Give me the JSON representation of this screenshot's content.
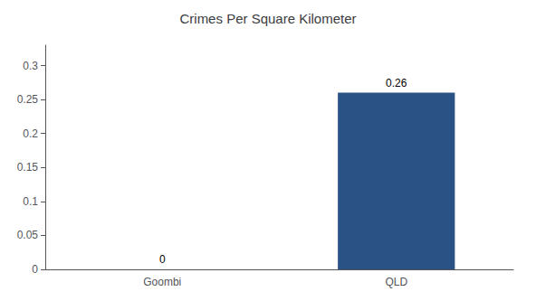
{
  "chart_data": {
    "type": "bar",
    "title": "Crimes Per Square Kilometer",
    "categories": [
      "Goombi",
      "QLD"
    ],
    "values": [
      0,
      0.26
    ],
    "color": "#2b5285",
    "ylim": [
      0,
      0.33
    ],
    "yticks": [
      0,
      0.05,
      0.1,
      0.15,
      0.2,
      0.25,
      0.3
    ],
    "grid": false,
    "data_labels": true
  }
}
